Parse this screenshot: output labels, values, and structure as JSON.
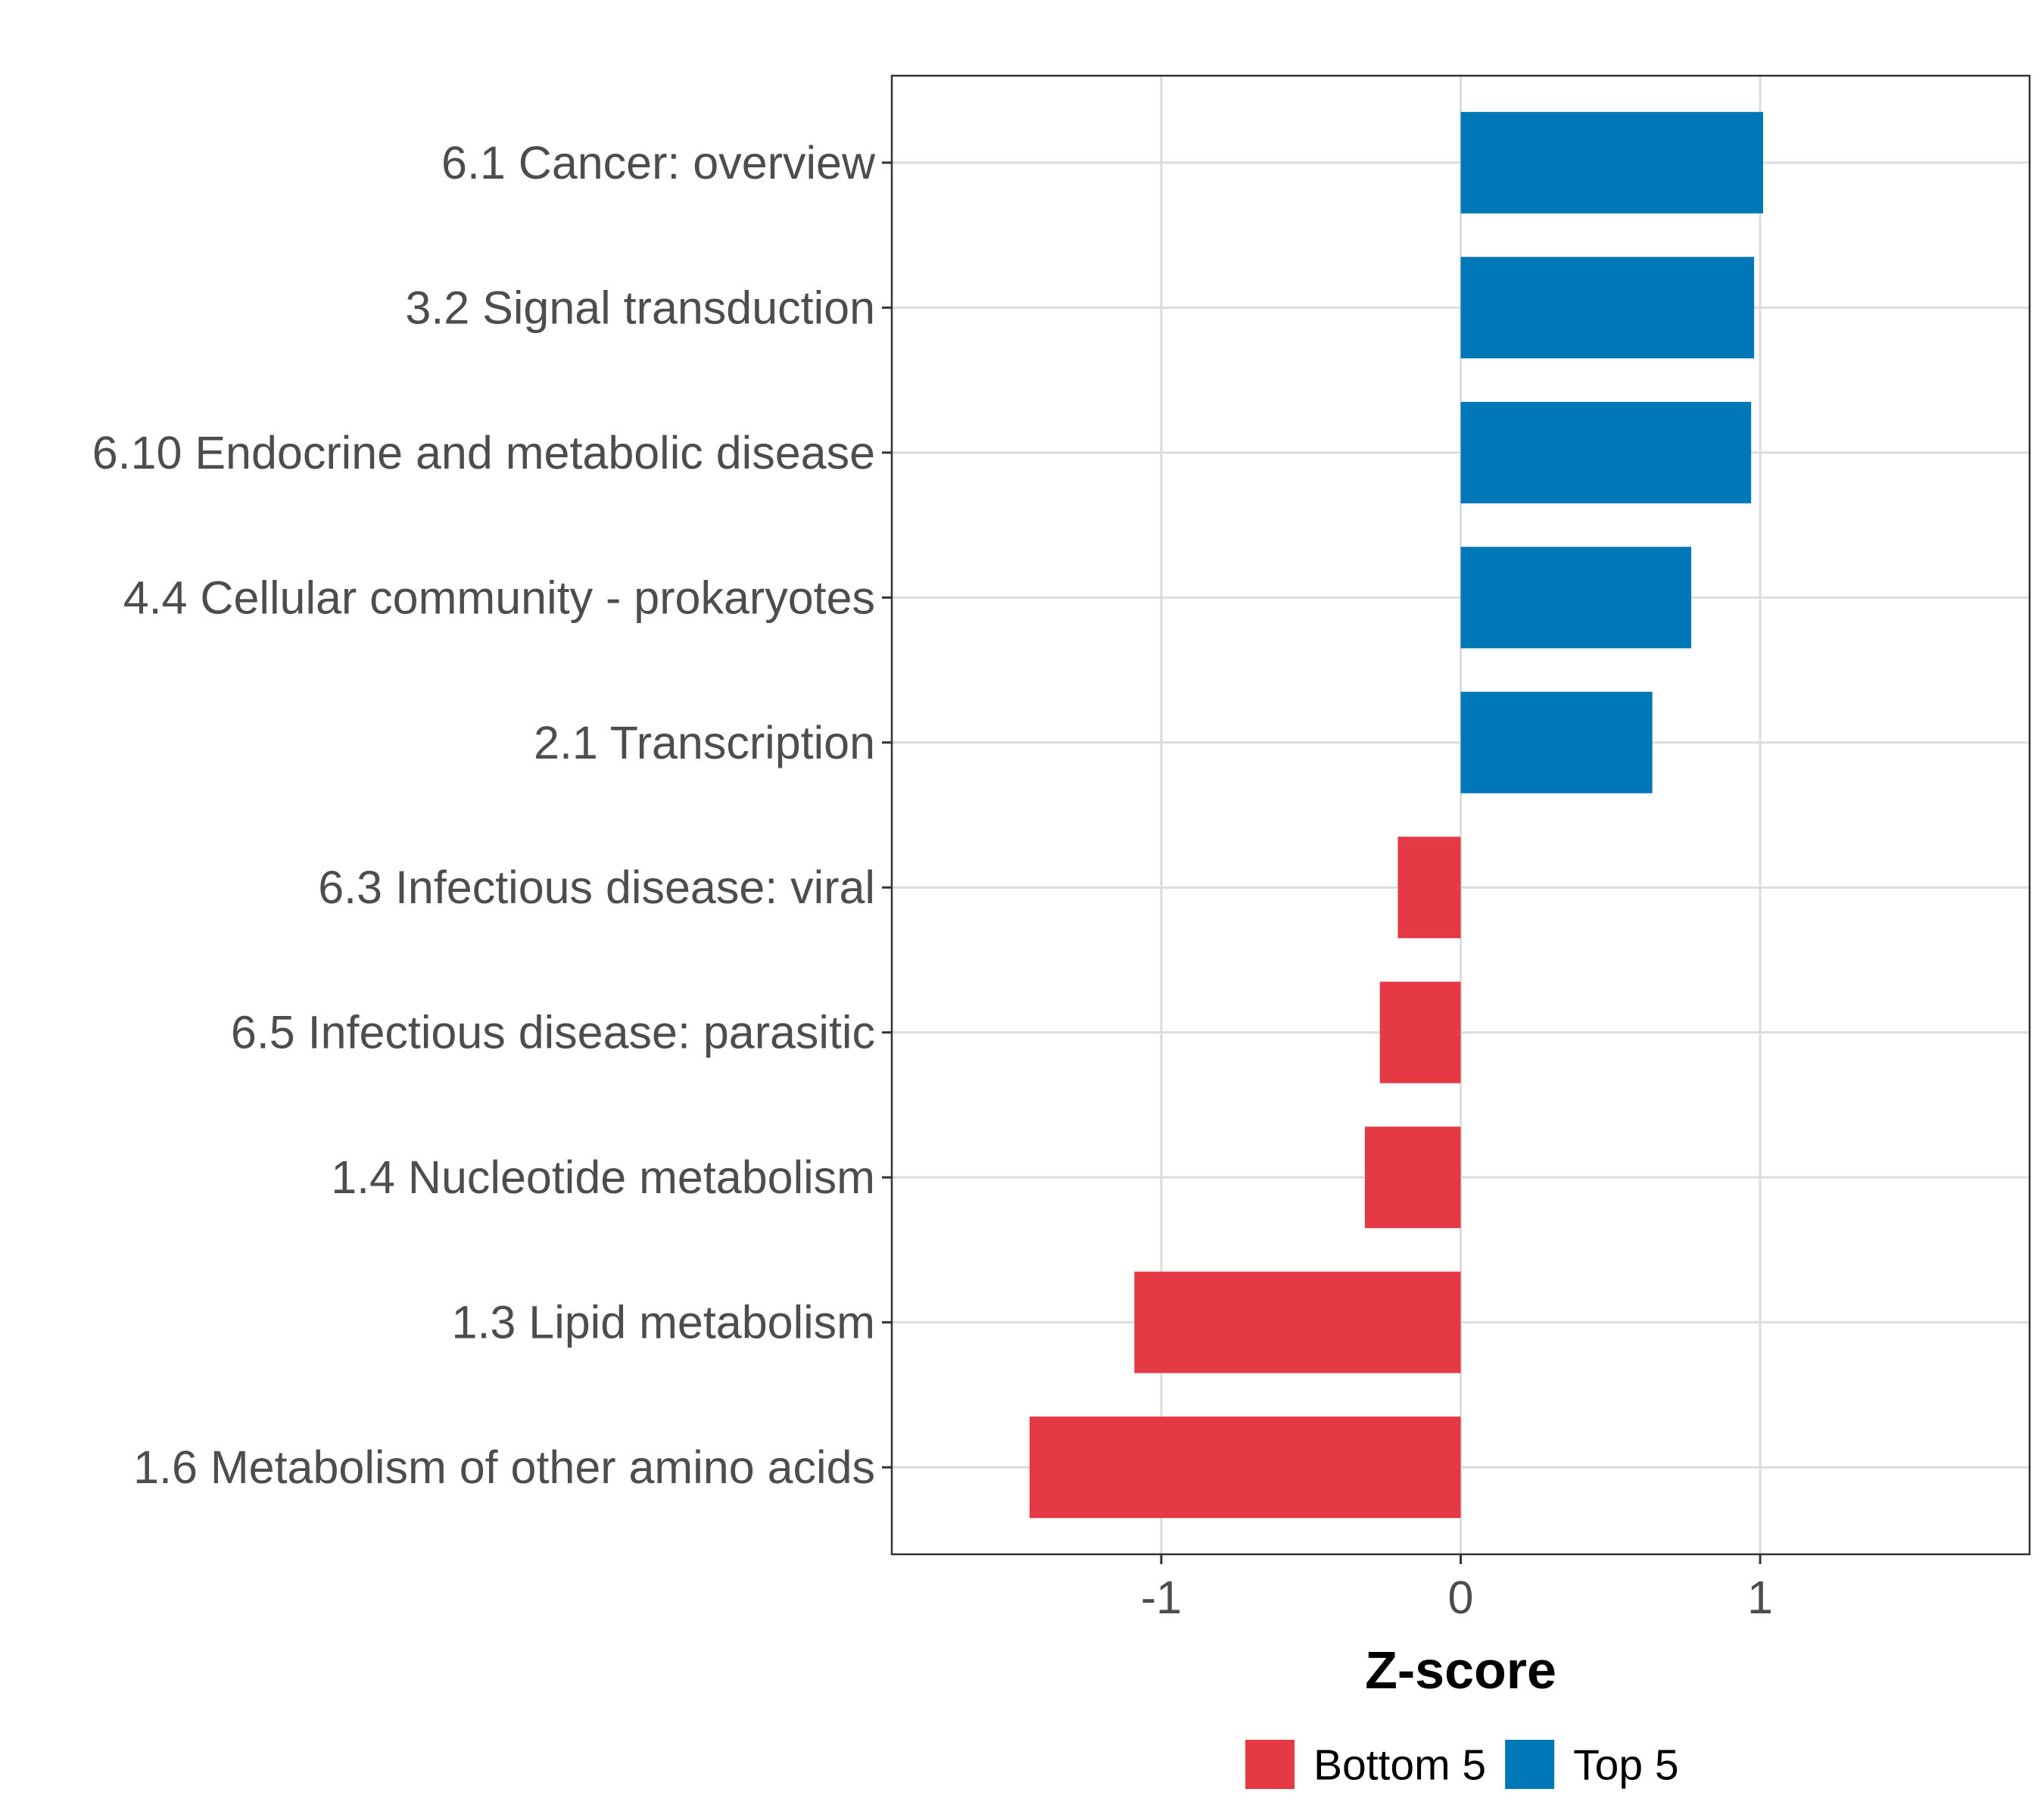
{
  "chart_data": {
    "type": "bar",
    "orientation": "horizontal",
    "title": "",
    "xlabel": "Z-score",
    "ylabel": "",
    "xlim": [
      -1.9,
      1.9
    ],
    "xticks": [
      {
        "value": -1,
        "label": "-1"
      },
      {
        "value": 0,
        "label": "0"
      },
      {
        "value": 1,
        "label": "1"
      }
    ],
    "grid": true,
    "legend_position": "bottom",
    "categories": [
      "6.1 Cancer: overview",
      "3.2 Signal transduction",
      "6.10 Endocrine and metabolic disease",
      "4.4 Cellular community - prokaryotes",
      "2.1 Transcription",
      "6.3 Infectious disease: viral",
      "6.5 Infectious disease: parasitic",
      "1.4 Nucleotide metabolism",
      "1.3 Lipid metabolism",
      "1.6 Metabolism of other amino acids"
    ],
    "values": [
      1.01,
      0.98,
      0.97,
      0.77,
      0.64,
      -0.21,
      -0.27,
      -0.32,
      -1.09,
      -1.44
    ],
    "groups": [
      "Top 5",
      "Top 5",
      "Top 5",
      "Top 5",
      "Top 5",
      "Bottom 5",
      "Bottom 5",
      "Bottom 5",
      "Bottom 5",
      "Bottom 5"
    ],
    "legend": [
      {
        "label": "Bottom 5",
        "color": "#e63946"
      },
      {
        "label": "Top 5",
        "color": "#0077b6"
      }
    ]
  }
}
